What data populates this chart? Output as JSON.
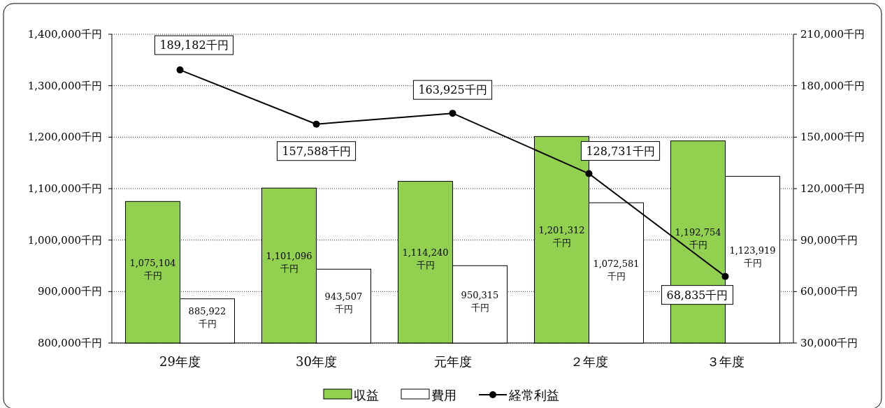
{
  "chart_data": {
    "type": "bar",
    "categories": [
      "29年度",
      "30年度",
      "元年度",
      "２年度",
      "３年度"
    ],
    "series": [
      {
        "name": "収益",
        "color": "#92d050",
        "values": [
          1075104,
          1101096,
          1114240,
          1201312,
          1192754
        ],
        "value_labels": [
          "1,075,104千円",
          "1,101,096千円",
          "1,114,240千円",
          "1,201,312千円",
          "1,192,754千円"
        ]
      },
      {
        "name": "費用",
        "color": "#ffffff",
        "values": [
          885922,
          943507,
          950315,
          1072581,
          1123919
        ],
        "value_labels": [
          "885,922千円",
          "943,507千円",
          "950,315千円",
          "1,072,581千円",
          "1,123,919千円"
        ]
      },
      {
        "name": "経常利益",
        "type": "line",
        "axis": "y2",
        "color": "#000000",
        "marker": "circle",
        "values": [
          189182,
          157588,
          163925,
          128731,
          68835
        ],
        "value_labels": [
          "189,182千円",
          "157,588千円",
          "163,925千円",
          "128,731千円",
          "68,835千円"
        ]
      }
    ],
    "ylim": [
      800000,
      1400000
    ],
    "yticks": [
      {
        "value": 800000,
        "label": "800,000千円"
      },
      {
        "value": 900000,
        "label": "900,000千円"
      },
      {
        "value": 1000000,
        "label": "1,000,000千円"
      },
      {
        "value": 1100000,
        "label": "1,100,000千円"
      },
      {
        "value": 1200000,
        "label": "1,200,000千円"
      },
      {
        "value": 1300000,
        "label": "1,300,000千円"
      },
      {
        "value": 1400000,
        "label": "1,400,000千円"
      }
    ],
    "y2lim": [
      30000,
      210000
    ],
    "y2ticks": [
      {
        "value": 30000,
        "label": "30,000千円"
      },
      {
        "value": 60000,
        "label": "60,000千円"
      },
      {
        "value": 90000,
        "label": "90,000千円"
      },
      {
        "value": 120000,
        "label": "120,000千円"
      },
      {
        "value": 150000,
        "label": "150,000千円"
      },
      {
        "value": 180000,
        "label": "180,000千円"
      },
      {
        "value": 210000,
        "label": "210,000千円"
      }
    ],
    "grid": "y",
    "legend": "bottom"
  }
}
